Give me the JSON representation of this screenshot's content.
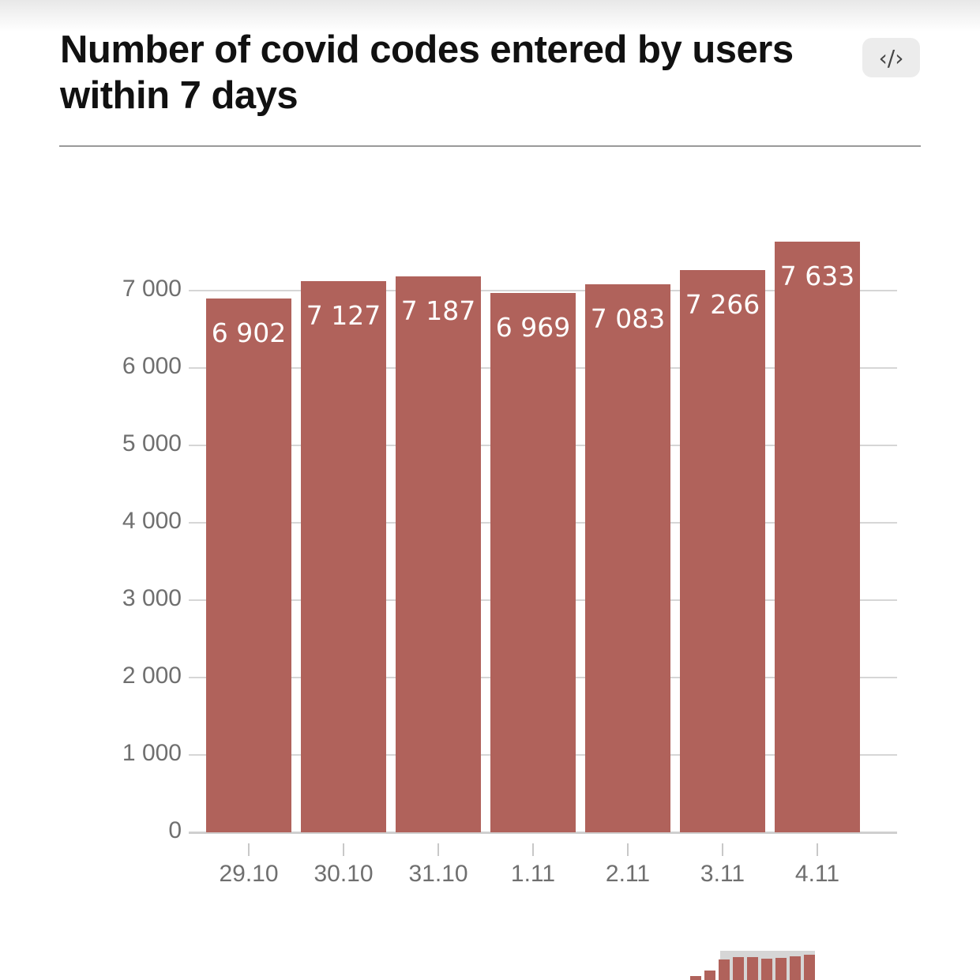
{
  "title": "Number of covid codes entered by users within 7 days",
  "embed_button": {
    "icon": "code-icon",
    "glyph": "‹/›"
  },
  "colors": {
    "bar": "#b0625b",
    "grid": "#d6d6d6",
    "axis_text": "#6f6f6f"
  },
  "chart_data": {
    "type": "bar",
    "title": "Number of covid codes entered by users within 7 days",
    "xlabel": "",
    "ylabel": "",
    "categories": [
      "29.10",
      "30.10",
      "31.10",
      "1.11",
      "2.11",
      "3.11",
      "4.11"
    ],
    "values": [
      6902,
      7127,
      7187,
      6969,
      7083,
      7266,
      7633
    ],
    "value_labels": [
      "6 902",
      "7 127",
      "7 187",
      "6 969",
      "7 083",
      "7 266",
      "7 633"
    ],
    "yticks": [
      "0",
      "1 000",
      "2 000",
      "3 000",
      "4 000",
      "5 000",
      "6 000",
      "7 000"
    ],
    "ylim": [
      0,
      7700
    ],
    "grid": true,
    "legend": null
  },
  "minimap": {
    "values": [
      0.15,
      0.4,
      0.88,
      0.95,
      0.97,
      0.9,
      0.93,
      1.0,
      1.05
    ]
  }
}
